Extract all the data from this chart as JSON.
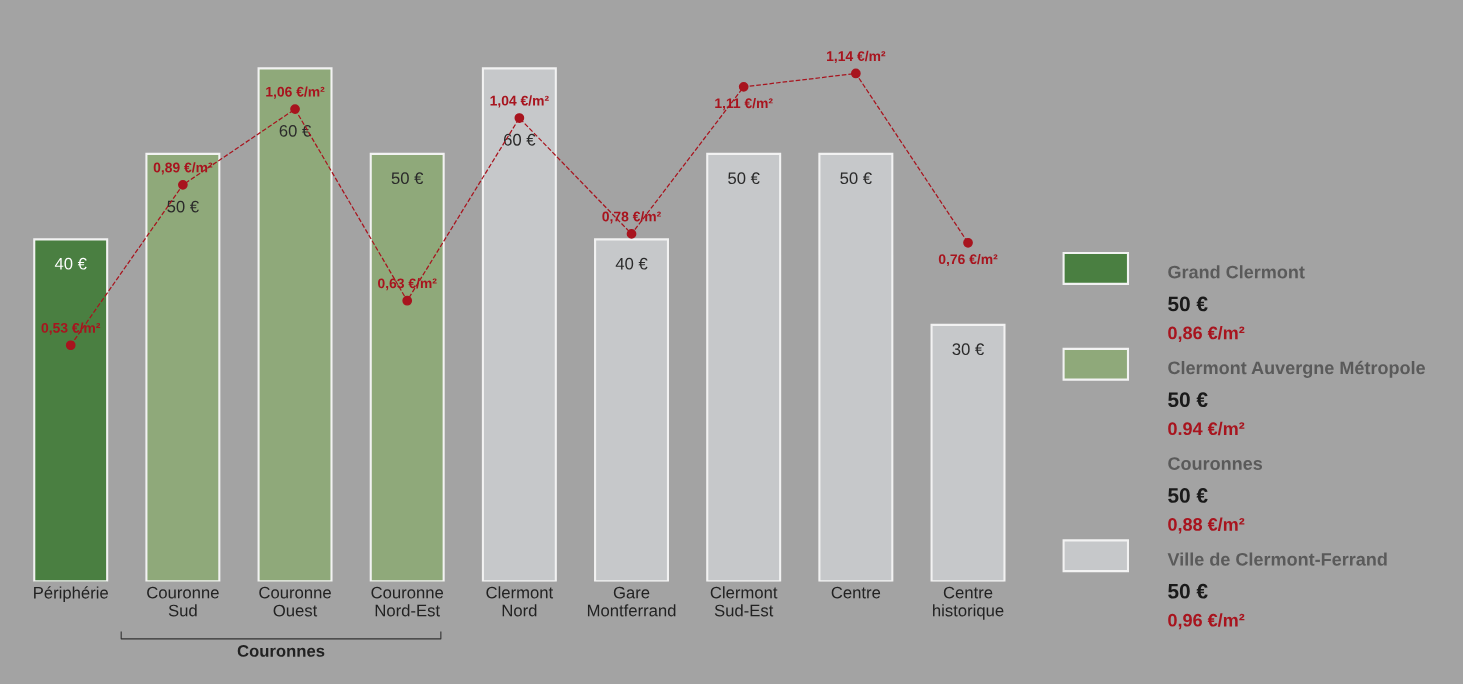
{
  "chart_data": {
    "type": "bar",
    "stacked": true,
    "tick_labels": "x",
    "grid": false,
    "legend": "right",
    "categories": [
      "Périphérie",
      "Couronne\nSud",
      "Couronne\nOuest",
      "Couronne\nNord-Est",
      "Clermont\nNord",
      "Gare\nMontferrand",
      "Clermont\nSud-Est",
      "Centre",
      "Centre\nhistorique"
    ],
    "series": [
      {
        "name": "Grand Clermont",
        "color": "#4a7f41",
        "values": [
          40,
          null,
          null,
          null,
          null,
          null,
          null,
          null,
          null
        ],
        "value_labels": [
          "40 €",
          null,
          null,
          null,
          null,
          null,
          null,
          null,
          null
        ]
      },
      {
        "name": "Clermont Auvergne Métropole",
        "color": "#8fa97a",
        "values": [
          null,
          50,
          60,
          50,
          null,
          null,
          null,
          null,
          null
        ],
        "value_labels": [
          null,
          "50 €",
          "60 €",
          "50 €",
          null,
          null,
          null,
          null,
          null
        ]
      },
      {
        "name": "Ville de Clermont-Ferrand",
        "color": "#c6c8ca",
        "values": [
          null,
          null,
          null,
          null,
          60,
          40,
          50,
          50,
          30
        ],
        "value_labels": [
          null,
          null,
          null,
          null,
          "60 €",
          "40 €",
          "50 €",
          "50 €",
          "30 €"
        ]
      },
      {
        "type": "line",
        "axis": "y2",
        "color": "#a8141e",
        "line_style": "dashed",
        "marker": "circle",
        "values": [
          0.53,
          0.89,
          1.06,
          0.63,
          1.04,
          0.78,
          1.11,
          1.14,
          0.76
        ],
        "value_labels": [
          "0,53 €/m²",
          "0,89 €/m²",
          "1,06 €/m²",
          "0,63 €/m²",
          "1,04 €/m²",
          "0,78 €/m²",
          "1,11 €/m²",
          "1,14 €/m²",
          "0,76 €/m²"
        ]
      }
    ],
    "annotations": [
      "Couronnes",
      "50 €",
      "0,86 €/m²",
      "50 €",
      "0.94 €/m²",
      "Couronnes",
      "50 €",
      "0,88 €/m²",
      "50 €",
      "0,96 €/m²"
    ]
  }
}
